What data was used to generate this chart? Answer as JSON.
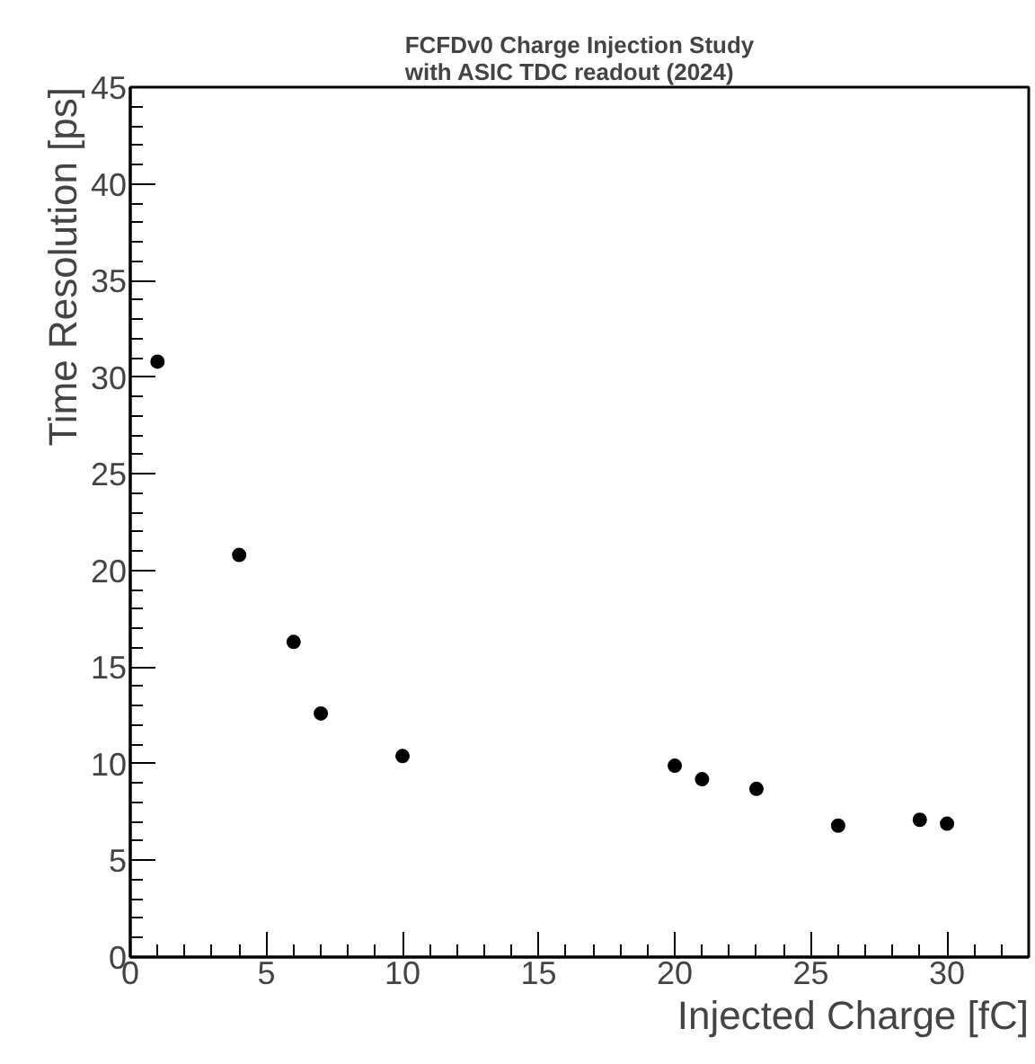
{
  "chart_data": {
    "type": "scatter",
    "title": "FCFDv0 Charge Injection Study\nwith ASIC TDC readout (2024)",
    "xlabel": "Injected Charge [fC]",
    "ylabel": "Time Resolution [ps]",
    "x": [
      1,
      4,
      6,
      7,
      10,
      20,
      21,
      23,
      26,
      29,
      30
    ],
    "series": [
      {
        "color": "#000000",
        "values": [
          30.8,
          20.8,
          16.3,
          12.6,
          10.4,
          9.9,
          9.2,
          8.7,
          6.8,
          7.1,
          6.9
        ]
      }
    ],
    "xlim": [
      0,
      33
    ],
    "ylim": [
      0,
      45
    ],
    "xticks": [
      0,
      5,
      10,
      15,
      20,
      25,
      30
    ],
    "yticks": [
      0,
      5,
      10,
      15,
      20,
      25,
      30,
      35,
      40,
      45
    ],
    "grid": false,
    "marker": "circle"
  }
}
